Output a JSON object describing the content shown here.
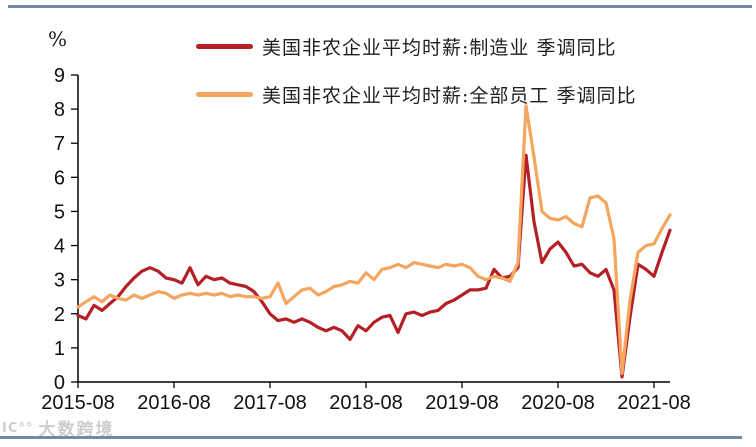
{
  "page": {
    "background": "#ffffff",
    "border_color": "#7589a2",
    "text_color": "#1a1a1a"
  },
  "watermark": {
    "logo_text": "IC°°",
    "brand_text": "大数跨境",
    "color": "#cdcdcd"
  },
  "chart_data": {
    "type": "line",
    "title": "",
    "unit_label": "%",
    "grid": false,
    "legend_position": "top",
    "x_axis": {
      "start": "2015-08",
      "end": "2021-10",
      "frequency": "monthly",
      "tick_labels": [
        "2015-08",
        "2016-08",
        "2017-08",
        "2018-08",
        "2019-08",
        "2020-08",
        "2021-08"
      ],
      "tick_indices": [
        0,
        12,
        24,
        36,
        48,
        60,
        72
      ]
    },
    "y_axis": {
      "min": 0,
      "max": 9,
      "ticks": [
        0,
        1,
        2,
        3,
        4,
        5,
        6,
        7,
        8,
        9
      ]
    },
    "axis_color": "#000000",
    "series": [
      {
        "name": "美国非农企业平均时薪:制造业 季调同比",
        "slug": "manufacturing",
        "color": "#b42025",
        "values": [
          1.95,
          1.85,
          2.25,
          2.1,
          2.3,
          2.5,
          2.8,
          3.05,
          3.25,
          3.35,
          3.25,
          3.05,
          3.0,
          2.9,
          3.35,
          2.85,
          3.1,
          3.0,
          3.05,
          2.9,
          2.85,
          2.8,
          2.65,
          2.35,
          2.0,
          1.8,
          1.85,
          1.75,
          1.85,
          1.75,
          1.6,
          1.5,
          1.6,
          1.5,
          1.25,
          1.65,
          1.5,
          1.75,
          1.9,
          1.95,
          1.45,
          2.0,
          2.05,
          1.95,
          2.05,
          2.1,
          2.3,
          2.4,
          2.55,
          2.7,
          2.7,
          2.75,
          3.3,
          3.05,
          3.1,
          3.35,
          6.65,
          4.7,
          3.5,
          3.9,
          4.1,
          3.8,
          3.4,
          3.45,
          3.2,
          3.1,
          3.3,
          2.7,
          0.15,
          1.9,
          3.45,
          3.3,
          3.1,
          3.8,
          4.45
        ]
      },
      {
        "name": "美国非农企业平均时薪:全部员工 季调同比",
        "slug": "all-employees",
        "color": "#f4a55e",
        "values": [
          2.2,
          2.35,
          2.5,
          2.35,
          2.55,
          2.45,
          2.4,
          2.55,
          2.45,
          2.55,
          2.65,
          2.6,
          2.45,
          2.55,
          2.6,
          2.55,
          2.6,
          2.55,
          2.6,
          2.5,
          2.55,
          2.5,
          2.5,
          2.45,
          2.5,
          2.9,
          2.3,
          2.5,
          2.7,
          2.75,
          2.55,
          2.65,
          2.8,
          2.85,
          2.95,
          2.9,
          3.2,
          3.0,
          3.3,
          3.35,
          3.45,
          3.35,
          3.5,
          3.45,
          3.4,
          3.35,
          3.45,
          3.4,
          3.45,
          3.35,
          3.1,
          3.0,
          3.1,
          3.05,
          2.95,
          3.5,
          8.1,
          6.6,
          5.0,
          4.8,
          4.75,
          4.85,
          4.65,
          4.55,
          5.4,
          5.45,
          5.25,
          4.2,
          0.25,
          2.4,
          3.8,
          4.0,
          4.05,
          4.5,
          4.9
        ]
      }
    ]
  }
}
